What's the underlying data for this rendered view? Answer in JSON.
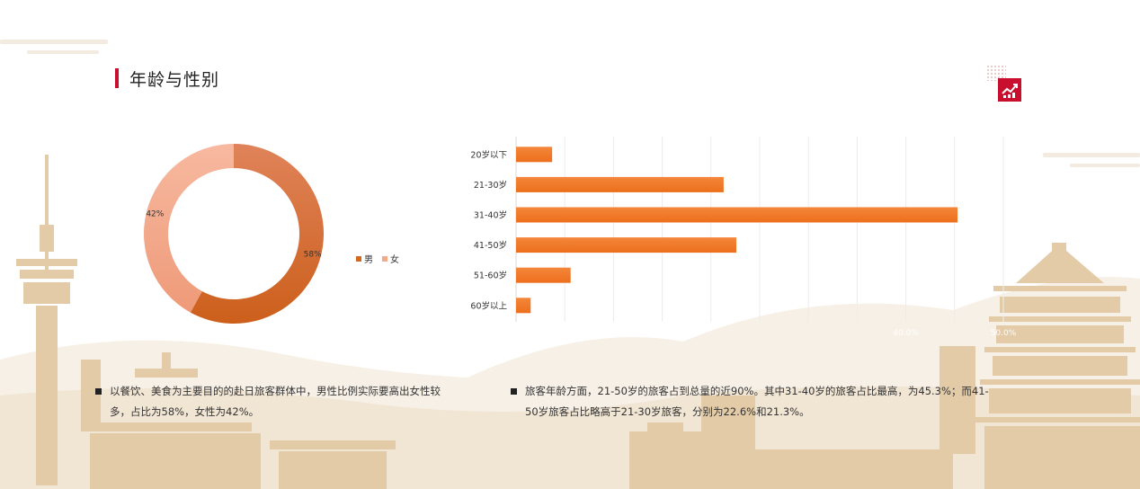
{
  "header": {
    "title": "年龄与性别"
  },
  "colors": {
    "accent": "#c8102e",
    "male": "#d2691e",
    "female": "#f3a98a",
    "bar": "#f07a2a",
    "decor": "#e6d3b8"
  },
  "icons": {
    "logo": "trend-chart-icon"
  },
  "chart_data": [
    {
      "type": "pie",
      "variant": "donut",
      "categories": [
        "男",
        "女"
      ],
      "values": [
        58,
        42
      ],
      "data_labels": [
        "58%",
        "42%"
      ],
      "legend_position": "right"
    },
    {
      "type": "bar",
      "orientation": "horizontal",
      "categories": [
        "20岁以下",
        "21-30岁",
        "31-40岁",
        "41-50岁",
        "51-60岁",
        "60岁以上"
      ],
      "values": [
        3.7,
        21.3,
        45.3,
        22.6,
        5.6,
        1.5
      ],
      "unit": "%",
      "xlim": [
        0,
        50
      ],
      "grid": true,
      "tick_labels_partially_visible": [
        "40.0%",
        "50.0%"
      ]
    }
  ],
  "notes": [
    {
      "text": "以餐饮、美食为主要目的的赴日旅客群体中，男性比例实际要高出女性较多，占比为58%，女性为42%。"
    },
    {
      "text": "旅客年龄方面，21-50岁的旅客占到总量的近90%。其中31-40岁的旅客占比最高，为45.3%；而41-50岁旅客占比略高于21-30岁旅客，分别为22.6%和21.3%。"
    }
  ]
}
